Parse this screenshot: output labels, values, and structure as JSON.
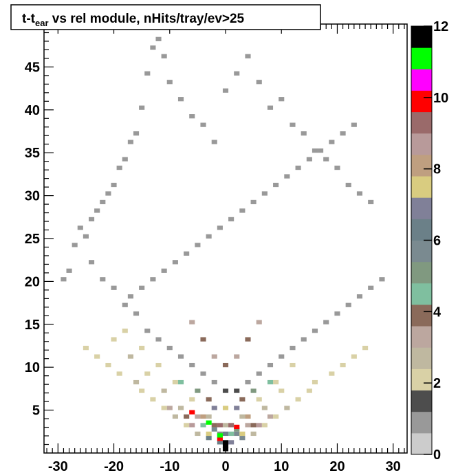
{
  "chart_data": {
    "type": "heatmap",
    "title_main": "t-t",
    "title_sub": "ear",
    "title_rest": " vs rel module, nHits/tray/ev>25",
    "x_range": [
      -32.5,
      32.5
    ],
    "y_range": [
      0,
      50
    ],
    "x_ticks": [
      -30,
      -20,
      -10,
      0,
      10,
      20,
      30
    ],
    "y_ticks": [
      5,
      10,
      15,
      20,
      25,
      30,
      35,
      40,
      45
    ],
    "z_range": [
      0,
      12
    ],
    "z_ticks": [
      0,
      2,
      4,
      6,
      8,
      10,
      12
    ],
    "palette": [
      "#cccccc",
      "#999999",
      "#4d4d4d",
      "#d9d1a6",
      "#bfb8a0",
      "#bca79f",
      "#8a6a5a",
      "#7fbf9f",
      "#809980",
      "#7a8a90",
      "#6b8088",
      "#808098",
      "#d9cc80",
      "#bf9f80",
      "#b89a9a",
      "#9a6a6a",
      "#ff0000",
      "#ff00ff",
      "#00ff00",
      "#000000"
    ],
    "bin_width": 1,
    "bin_height": 0.5,
    "cells": [
      [
        -29,
        20,
        1
      ],
      [
        -28,
        21,
        1
      ],
      [
        -27,
        24,
        1
      ],
      [
        -26,
        26,
        1
      ],
      [
        -25,
        25,
        1
      ],
      [
        -24,
        27,
        1
      ],
      [
        -23,
        28,
        1
      ],
      [
        -22,
        29,
        1
      ],
      [
        -21,
        30,
        1
      ],
      [
        -20,
        31,
        1
      ],
      [
        -19,
        33,
        1
      ],
      [
        -18,
        34,
        1
      ],
      [
        -17,
        36,
        1
      ],
      [
        -16,
        37,
        1
      ],
      [
        -15,
        40,
        1
      ],
      [
        -14,
        44,
        1
      ],
      [
        -13,
        47,
        1
      ],
      [
        -12,
        48,
        1
      ],
      [
        -11,
        46,
        1
      ],
      [
        -10,
        43,
        1
      ],
      [
        -8,
        41,
        1
      ],
      [
        -6,
        39,
        1
      ],
      [
        -4,
        38,
        1
      ],
      [
        -2,
        36,
        1
      ],
      [
        0,
        42,
        1
      ],
      [
        2,
        44,
        1
      ],
      [
        4,
        46,
        1
      ],
      [
        6,
        43,
        1
      ],
      [
        8,
        40,
        1
      ],
      [
        10,
        41,
        1
      ],
      [
        12,
        38,
        1
      ],
      [
        14,
        37,
        1
      ],
      [
        16,
        35,
        1
      ],
      [
        18,
        34,
        1
      ],
      [
        20,
        33,
        1
      ],
      [
        22,
        31,
        1
      ],
      [
        24,
        30,
        1
      ],
      [
        26,
        29,
        1
      ],
      [
        -24,
        22,
        1
      ],
      [
        -22,
        20,
        1
      ],
      [
        -20,
        19,
        1
      ],
      [
        -18,
        17,
        1
      ],
      [
        -16,
        16,
        1
      ],
      [
        -14,
        14,
        1
      ],
      [
        -12,
        13,
        1
      ],
      [
        -10,
        12,
        1
      ],
      [
        -8,
        11,
        1
      ],
      [
        -6,
        10,
        1
      ],
      [
        -4,
        9,
        1
      ],
      [
        -2,
        8,
        1
      ],
      [
        0,
        7,
        2
      ],
      [
        2,
        7,
        2
      ],
      [
        4,
        8,
        1
      ],
      [
        6,
        9,
        1
      ],
      [
        8,
        10,
        1
      ],
      [
        10,
        11,
        1
      ],
      [
        12,
        12,
        1
      ],
      [
        14,
        13,
        1
      ],
      [
        16,
        14,
        1
      ],
      [
        18,
        15,
        1
      ],
      [
        20,
        16,
        1
      ],
      [
        22,
        17,
        1
      ],
      [
        24,
        18,
        1
      ],
      [
        26,
        19,
        1
      ],
      [
        28,
        20,
        1
      ],
      [
        -18,
        14,
        3
      ],
      [
        -15,
        12,
        3
      ],
      [
        -12,
        10,
        3
      ],
      [
        -9,
        8,
        3
      ],
      [
        -6,
        6,
        3
      ],
      [
        -3,
        4,
        4
      ],
      [
        0,
        3,
        4
      ],
      [
        3,
        4,
        4
      ],
      [
        6,
        6,
        3
      ],
      [
        9,
        8,
        3
      ],
      [
        12,
        10,
        3
      ],
      [
        -20,
        13,
        3
      ],
      [
        -17,
        11,
        4
      ],
      [
        -14,
        9,
        3
      ],
      [
        -11,
        7,
        4
      ],
      [
        -8,
        5,
        4
      ],
      [
        -5,
        4,
        5
      ],
      [
        -2,
        3,
        6
      ],
      [
        1,
        2,
        7
      ],
      [
        4,
        3,
        5
      ],
      [
        7,
        5,
        4
      ],
      [
        10,
        7,
        3
      ],
      [
        -10,
        5,
        5
      ],
      [
        -7,
        4,
        6
      ],
      [
        -4,
        3,
        7
      ],
      [
        -1,
        2,
        8
      ],
      [
        2,
        2,
        9
      ],
      [
        5,
        3,
        6
      ],
      [
        8,
        4,
        5
      ],
      [
        -3,
        1.5,
        10
      ],
      [
        -1,
        1,
        10
      ],
      [
        1,
        1,
        11
      ],
      [
        3,
        1.5,
        9
      ],
      [
        -2,
        2.5,
        9
      ],
      [
        0,
        2,
        10
      ],
      [
        2,
        2.5,
        8
      ],
      [
        -6,
        4.5,
        16
      ],
      [
        2,
        2.8,
        16
      ],
      [
        -1,
        1.4,
        16
      ],
      [
        -3,
        3.3,
        18
      ],
      [
        -1,
        1.8,
        18
      ],
      [
        0,
        0.6,
        19
      ],
      [
        0,
        0.2,
        19
      ],
      [
        0,
        1,
        19
      ],
      [
        -5,
        2,
        4
      ],
      [
        5,
        2,
        4
      ],
      [
        -7,
        3,
        3
      ],
      [
        7,
        3,
        3
      ],
      [
        -9,
        4,
        4
      ],
      [
        9,
        4,
        3
      ],
      [
        -11,
        5,
        3
      ],
      [
        11,
        5,
        4
      ],
      [
        -13,
        6,
        3
      ],
      [
        13,
        6,
        3
      ],
      [
        -15,
        7,
        3
      ],
      [
        15,
        7,
        3
      ],
      [
        -16,
        8,
        4
      ],
      [
        16,
        8,
        3
      ],
      [
        -19,
        9,
        3
      ],
      [
        19,
        9,
        3
      ],
      [
        -21,
        10,
        3
      ],
      [
        21,
        10,
        3
      ],
      [
        -23,
        11,
        3
      ],
      [
        23,
        11,
        3
      ],
      [
        -25,
        12,
        3
      ],
      [
        25,
        12,
        3
      ],
      [
        -17,
        18,
        1
      ],
      [
        -15,
        19,
        1
      ],
      [
        -13,
        20,
        1
      ],
      [
        -11,
        21,
        1
      ],
      [
        -9,
        22,
        1
      ],
      [
        -7,
        23,
        1
      ],
      [
        -5,
        24,
        1
      ],
      [
        -3,
        25,
        1
      ],
      [
        -1,
        26,
        1
      ],
      [
        1,
        27,
        1
      ],
      [
        3,
        28,
        1
      ],
      [
        5,
        29,
        1
      ],
      [
        7,
        30,
        1
      ],
      [
        9,
        31,
        1
      ],
      [
        11,
        32,
        1
      ],
      [
        13,
        33,
        1
      ],
      [
        15,
        34,
        1
      ],
      [
        17,
        35,
        1
      ],
      [
        19,
        36,
        1
      ],
      [
        21,
        37,
        1
      ],
      [
        23,
        38,
        1
      ],
      [
        -6,
        15,
        5
      ],
      [
        -4,
        13,
        6
      ],
      [
        -2,
        11,
        5
      ],
      [
        0,
        10,
        6
      ],
      [
        2,
        11,
        5
      ],
      [
        4,
        13,
        6
      ],
      [
        6,
        15,
        5
      ],
      [
        -8,
        8,
        7
      ],
      [
        -5,
        7,
        8
      ],
      [
        -3,
        6,
        6
      ],
      [
        3,
        6,
        6
      ],
      [
        5,
        7,
        8
      ],
      [
        8,
        8,
        7
      ],
      [
        -2,
        5,
        11
      ],
      [
        0,
        5,
        12
      ],
      [
        2,
        5,
        11
      ],
      [
        -4,
        4,
        13
      ],
      [
        4,
        4,
        13
      ],
      [
        -6,
        3,
        14
      ],
      [
        6,
        3,
        14
      ],
      [
        -1,
        3,
        15
      ],
      [
        1,
        3,
        15
      ],
      [
        -3,
        2,
        12
      ],
      [
        3,
        2,
        12
      ]
    ]
  }
}
